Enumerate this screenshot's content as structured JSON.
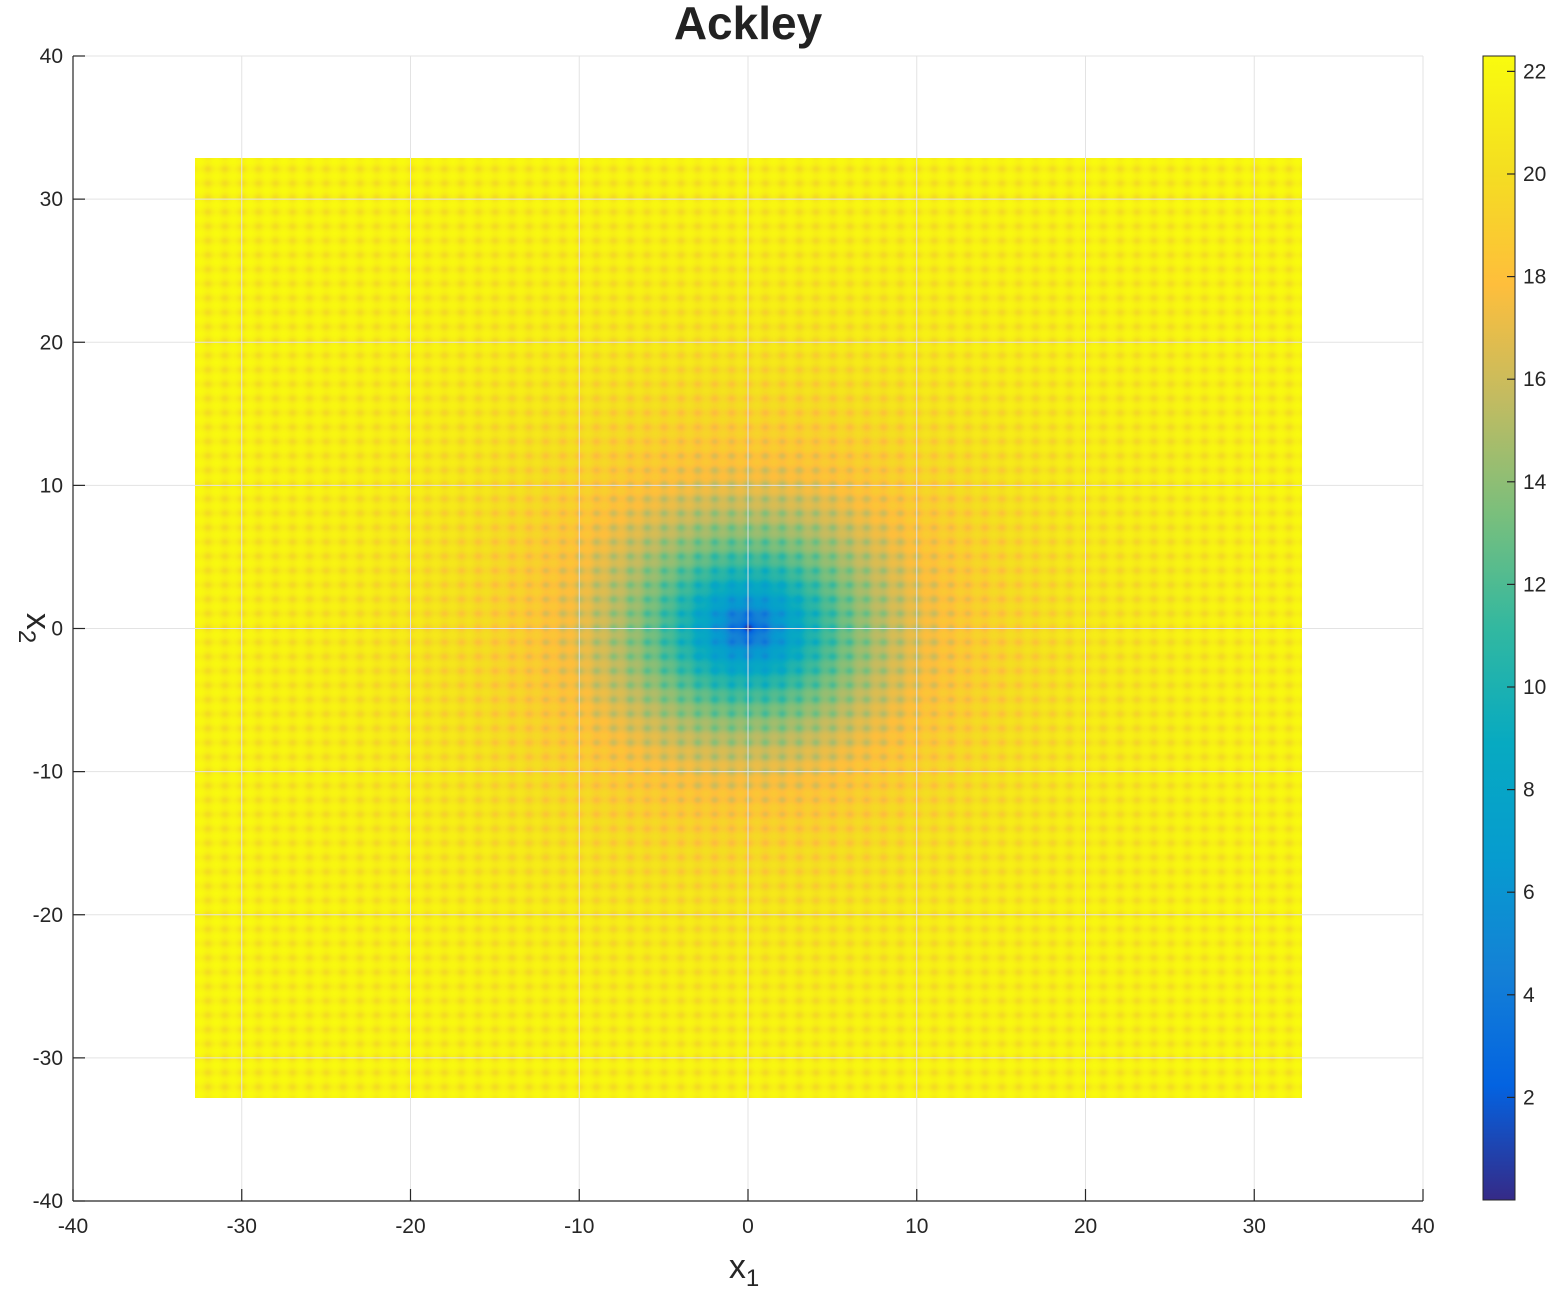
{
  "chart_data": {
    "type": "heatmap",
    "title": "Ackley",
    "xlabel": "x",
    "xlabel_sub": "1",
    "ylabel": "x",
    "ylabel_sub": "2",
    "xlim": [
      -40,
      40
    ],
    "ylim": [
      -40,
      40
    ],
    "xticks": [
      -40,
      -30,
      -20,
      -10,
      0,
      10,
      20,
      30,
      40
    ],
    "yticks": [
      -40,
      -30,
      -20,
      -10,
      0,
      10,
      20,
      30,
      40
    ],
    "data_extent": {
      "x": [
        -32.768,
        32.768
      ],
      "y": [
        -32.768,
        32.768
      ]
    },
    "function": "ackley",
    "grid": true,
    "colormap": "parula",
    "colorbar": {
      "position": "right",
      "clim": [
        0,
        22.3
      ],
      "ticks": [
        2,
        4,
        6,
        8,
        10,
        12,
        14,
        16,
        18,
        20,
        22
      ]
    }
  }
}
